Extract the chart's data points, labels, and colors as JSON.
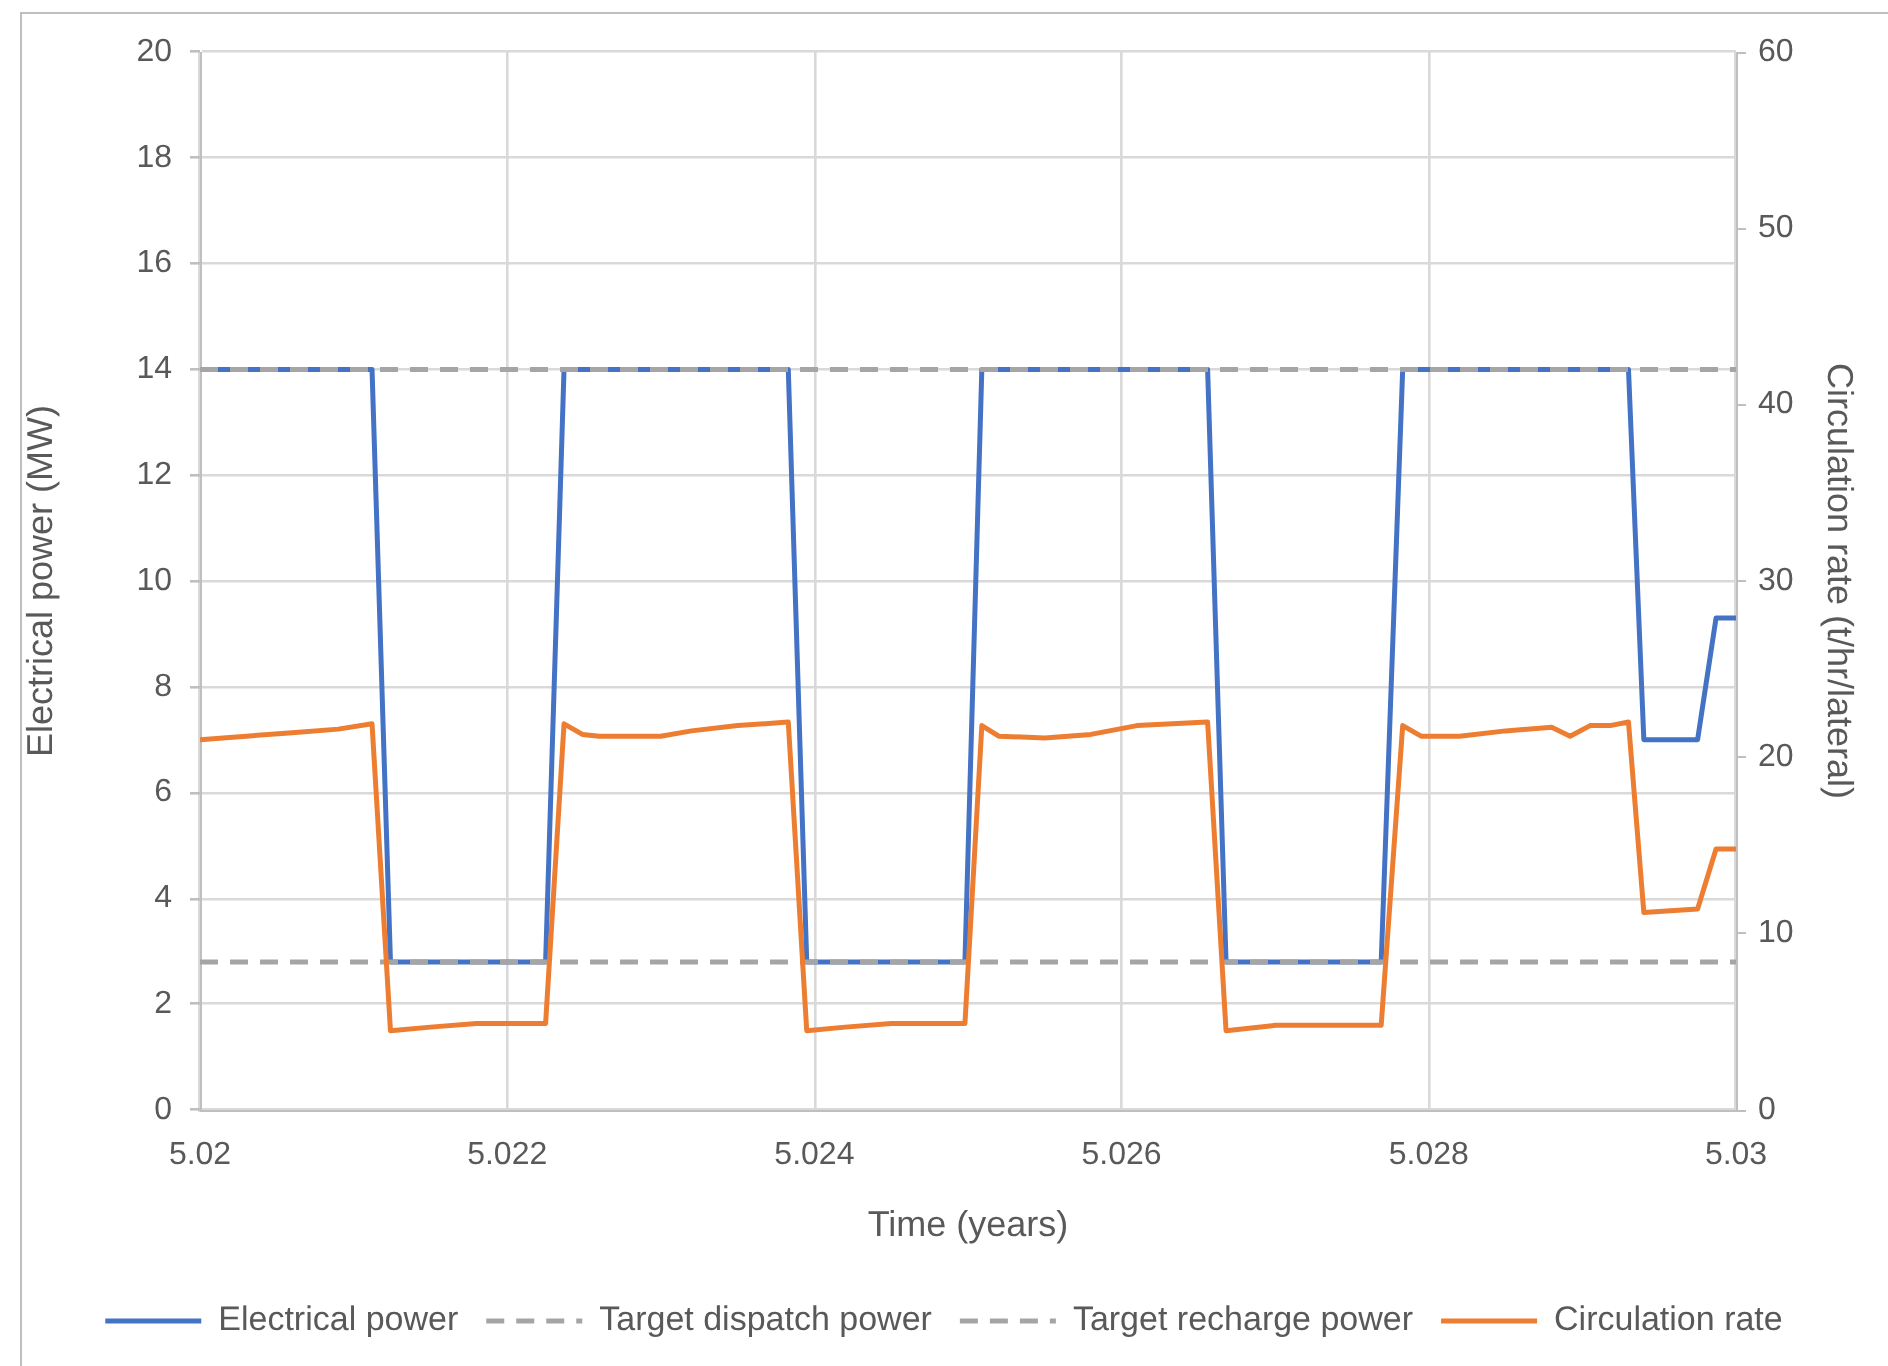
{
  "chart_data": {
    "type": "line",
    "xlabel": "Time (years)",
    "ylabel": "Electrical power (MW)",
    "y2label": "Circulation rate (t/hr/lateral)",
    "xlim": [
      5.02,
      5.03
    ],
    "xticks": [
      5.02,
      5.022,
      5.024,
      5.026,
      5.028,
      5.03
    ],
    "ylim": [
      0,
      20
    ],
    "yticks": [
      0,
      2,
      4,
      6,
      8,
      10,
      12,
      14,
      16,
      18,
      20
    ],
    "y2lim": [
      0,
      60
    ],
    "y2ticks": [
      0,
      10,
      20,
      30,
      40,
      50,
      60
    ],
    "grid": true,
    "legend": "bottom",
    "marker": "none",
    "series": [
      {
        "name": "Electrical power",
        "color": "#4472c4",
        "line_style": "solid",
        "x": [
          5.02,
          5.02112,
          5.02124,
          5.02225,
          5.02237,
          5.02383,
          5.02395,
          5.02498,
          5.02509,
          5.02656,
          5.02668,
          5.02769,
          5.02783,
          5.0293,
          5.0294,
          5.02975,
          5.02987,
          5.03
        ],
        "values": [
          14,
          14,
          2.8,
          2.8,
          14,
          14,
          2.8,
          2.8,
          14,
          14,
          2.8,
          2.8,
          14,
          14,
          7,
          7,
          9.3,
          9.3
        ]
      },
      {
        "name": "Target dispatch power",
        "color": "#a5a5a5",
        "line_style": "dashed",
        "x": [
          5.02,
          5.03
        ],
        "values": [
          14,
          14
        ]
      },
      {
        "name": "Target recharge power",
        "color": "#a5a5a5",
        "line_style": "dashed",
        "x": [
          5.02,
          5.03
        ],
        "values": [
          2.8,
          2.8
        ]
      },
      {
        "name": "Circulation rate",
        "color": "#ed7d31",
        "line_style": "solid",
        "axis": "y2",
        "x": [
          5.02,
          5.0203,
          5.0206,
          5.0209,
          5.02112,
          5.02124,
          5.0215,
          5.0218,
          5.02225,
          5.02237,
          5.02249,
          5.0226,
          5.023,
          5.0232,
          5.0235,
          5.02383,
          5.02395,
          5.0242,
          5.0245,
          5.02498,
          5.02509,
          5.0252,
          5.0255,
          5.0258,
          5.0261,
          5.02656,
          5.02668,
          5.027,
          5.02769,
          5.02783,
          5.02795,
          5.0282,
          5.0285,
          5.0288,
          5.02892,
          5.02905,
          5.02918,
          5.0293,
          5.0294,
          5.02975,
          5.02987,
          5.03
        ],
        "values": [
          21,
          21.2,
          21.4,
          21.6,
          21.9,
          4.5,
          4.7,
          4.9,
          4.9,
          21.9,
          21.3,
          21.2,
          21.2,
          21.5,
          21.8,
          22,
          4.5,
          4.7,
          4.9,
          4.9,
          21.8,
          21.2,
          21.1,
          21.3,
          21.8,
          22,
          4.5,
          4.8,
          4.8,
          21.8,
          21.2,
          21.2,
          21.5,
          21.7,
          21.2,
          21.8,
          21.8,
          22,
          11.2,
          11.4,
          14.8,
          14.8
        ]
      }
    ]
  }
}
